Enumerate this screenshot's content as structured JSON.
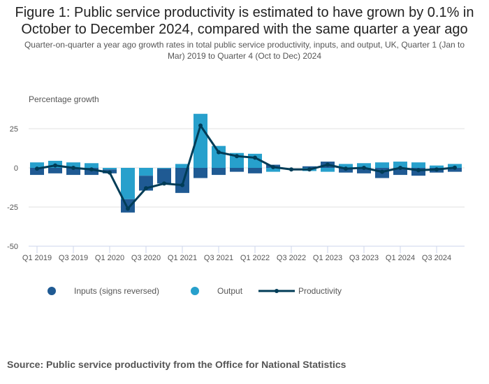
{
  "chart_data": {
    "type": "bar",
    "title": "Figure 1: Public service productivity is estimated to have grown by 0.1% in October to December 2024, compared with the same quarter a year ago",
    "subtitle": "Quarter-on-quarter a year ago growth rates in total public service productivity, inputs, and output, UK, Quarter 1 (Jan to Mar) 2019 to Quarter 4 (Oct to Dec) 2024",
    "ylabel": "Percentage growth",
    "xlabel": "",
    "ylim": [
      -50,
      35
    ],
    "yticks": [
      25,
      0,
      -25,
      -50
    ],
    "grid": true,
    "legend_position": "bottom",
    "categories": [
      "Q1 2019",
      "Q2 2019",
      "Q3 2019",
      "Q4 2019",
      "Q1 2020",
      "Q2 2020",
      "Q3 2020",
      "Q4 2020",
      "Q1 2021",
      "Q2 2021",
      "Q3 2021",
      "Q4 2021",
      "Q1 2022",
      "Q2 2022",
      "Q3 2022",
      "Q4 2022",
      "Q1 2023",
      "Q2 2023",
      "Q3 2023",
      "Q4 2023",
      "Q1 2024",
      "Q2 2024",
      "Q3 2024",
      "Q4 2024"
    ],
    "xtick_labels": [
      "Q1 2019",
      "Q3 2019",
      "Q1 2020",
      "Q3 2020",
      "Q1 2021",
      "Q3 2021",
      "Q1 2022",
      "Q3 2022",
      "Q1 2023",
      "Q3 2023",
      "Q1 2024",
      "Q3 2024"
    ],
    "series": [
      {
        "name": "Inputs (signs reversed)",
        "type": "stacked-bar",
        "color": "#1f5a93",
        "values": [
          -4.5,
          -3.5,
          -4.5,
          -4.5,
          -2.5,
          -8.5,
          -9.5,
          -9.5,
          -16,
          -6.5,
          -4.5,
          -2.5,
          -3.5,
          2,
          0,
          1,
          4,
          -3,
          -3.5,
          -6.5,
          -4.5,
          -5,
          -3,
          -2.5
        ]
      },
      {
        "name": "Output",
        "type": "stacked-bar",
        "color": "#27a0cc",
        "values": [
          3.5,
          4.5,
          3.5,
          3,
          -1,
          -20,
          -5,
          -0.5,
          2.5,
          34.5,
          14,
          9.5,
          9,
          -2.5,
          0,
          -2,
          -2.5,
          2.5,
          3,
          3.5,
          4,
          3.5,
          1.5,
          2.5
        ]
      },
      {
        "name": "Productivity",
        "type": "line",
        "color": "#003c57",
        "values": [
          -0.5,
          1.5,
          0,
          -1,
          -3,
          -26,
          -13,
          -10,
          -11,
          27,
          10,
          7.5,
          6.5,
          0.5,
          -1,
          -1,
          2,
          -0.5,
          0,
          -2.5,
          0,
          -1.5,
          -1,
          0.1
        ]
      }
    ]
  },
  "source": "Source: Public service productivity from the Office for National Statistics"
}
